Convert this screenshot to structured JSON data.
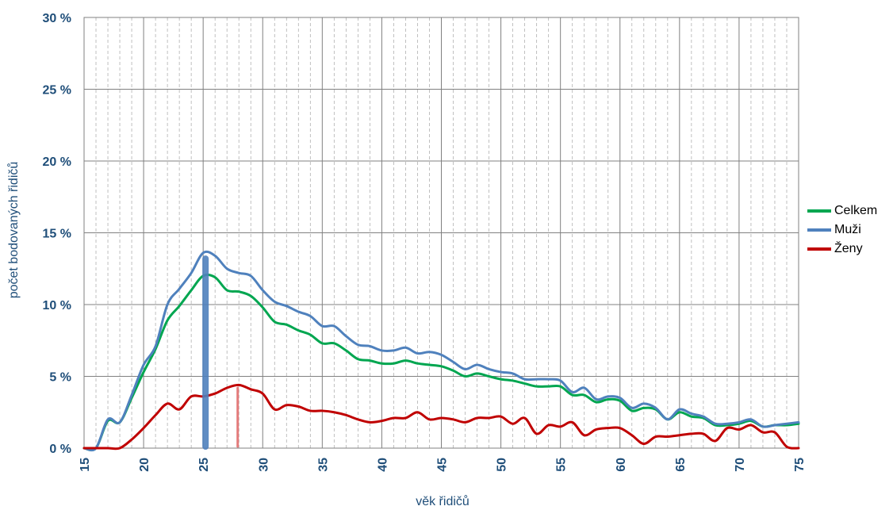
{
  "colors": {
    "axis_text": "#1f4e79",
    "grid_major": "#808080",
    "grid_minor": "#b0b0b0",
    "celkem": "#00a650",
    "muzi": "#4f81bd",
    "zeny": "#c00000",
    "marker_muzi": "#4f81bd",
    "marker_zeny": "#e06666"
  },
  "chart_data": {
    "type": "line",
    "xlabel": "věk řidičů",
    "ylabel": "počet bodovaných řidičů",
    "xlim": [
      15,
      75
    ],
    "ylim": [
      0,
      30
    ],
    "x_ticks": [
      15,
      20,
      25,
      30,
      35,
      40,
      45,
      50,
      55,
      60,
      65,
      70,
      75
    ],
    "y_ticks": [
      {
        "value": 0,
        "label": "0 %"
      },
      {
        "value": 5,
        "label": "5 %"
      },
      {
        "value": 10,
        "label": "10 %"
      },
      {
        "value": 15,
        "label": "15 %"
      },
      {
        "value": 20,
        "label": "20 %"
      },
      {
        "value": 25,
        "label": "25 %"
      },
      {
        "value": 30,
        "label": "30 %"
      }
    ],
    "grid": "major and minor vertical, major horizontal",
    "legend_position": "right",
    "x": [
      15,
      16,
      17,
      18,
      19,
      20,
      21,
      22,
      23,
      24,
      25,
      26,
      27,
      28,
      29,
      30,
      31,
      32,
      33,
      34,
      35,
      36,
      37,
      38,
      39,
      40,
      41,
      42,
      43,
      44,
      45,
      46,
      47,
      48,
      49,
      50,
      51,
      52,
      53,
      54,
      55,
      56,
      57,
      58,
      59,
      60,
      61,
      62,
      63,
      64,
      65,
      66,
      67,
      68,
      69,
      70,
      71,
      72,
      73,
      74,
      75
    ],
    "series": [
      {
        "name": "Celkem",
        "color_key": "celkem",
        "values": [
          0,
          0,
          1.9,
          1.8,
          3.5,
          5.3,
          6.9,
          8.9,
          9.9,
          11,
          12,
          11.9,
          11,
          10.9,
          10.6,
          9.8,
          8.8,
          8.6,
          8.2,
          7.9,
          7.3,
          7.3,
          6.8,
          6.2,
          6.1,
          5.9,
          5.9,
          6.1,
          5.9,
          5.8,
          5.7,
          5.4,
          5.0,
          5.2,
          5.0,
          4.8,
          4.7,
          4.5,
          4.3,
          4.3,
          4.3,
          3.7,
          3.7,
          3.2,
          3.4,
          3.3,
          2.6,
          2.8,
          2.7,
          2.0,
          2.5,
          2.2,
          2.1,
          1.6,
          1.6,
          1.7,
          1.9,
          1.5,
          1.6,
          1.6,
          1.7
        ]
      },
      {
        "name": "Muži",
        "color_key": "muzi",
        "values": [
          0,
          0,
          2.0,
          1.8,
          3.7,
          5.8,
          7.1,
          10,
          11.1,
          12.2,
          13.6,
          13.4,
          12.5,
          12.2,
          12,
          11,
          10.2,
          9.9,
          9.5,
          9.2,
          8.5,
          8.5,
          7.8,
          7.2,
          7.1,
          6.8,
          6.8,
          7.0,
          6.6,
          6.7,
          6.5,
          6.0,
          5.5,
          5.8,
          5.5,
          5.3,
          5.2,
          4.8,
          4.8,
          4.8,
          4.7,
          3.9,
          4.2,
          3.4,
          3.6,
          3.5,
          2.8,
          3.1,
          2.8,
          2.0,
          2.7,
          2.4,
          2.2,
          1.7,
          1.7,
          1.8,
          2.0,
          1.5,
          1.6,
          1.7,
          1.8
        ]
      },
      {
        "name": "Ženy",
        "color_key": "zeny",
        "values": [
          0,
          0,
          0,
          0,
          0.6,
          1.4,
          2.3,
          3.1,
          2.7,
          3.6,
          3.6,
          3.8,
          4.2,
          4.4,
          4.1,
          3.8,
          2.7,
          3.0,
          2.9,
          2.6,
          2.6,
          2.5,
          2.3,
          2.0,
          1.8,
          1.9,
          2.1,
          2.1,
          2.5,
          2.0,
          2.1,
          2.0,
          1.8,
          2.1,
          2.1,
          2.2,
          1.7,
          2.1,
          1.0,
          1.6,
          1.5,
          1.8,
          0.9,
          1.3,
          1.4,
          1.4,
          0.9,
          0.3,
          0.8,
          0.8,
          0.9,
          1.0,
          1.0,
          0.5,
          1.4,
          1.3,
          1.6,
          1.1,
          1.1,
          0.1,
          0
        ]
      }
    ],
    "markers": [
      {
        "x": 25.2,
        "y": 13.2,
        "color_key": "marker_muzi",
        "width": "thick"
      },
      {
        "x": 27.9,
        "y": 4.2,
        "color_key": "marker_zeny",
        "width": "thin"
      }
    ]
  }
}
